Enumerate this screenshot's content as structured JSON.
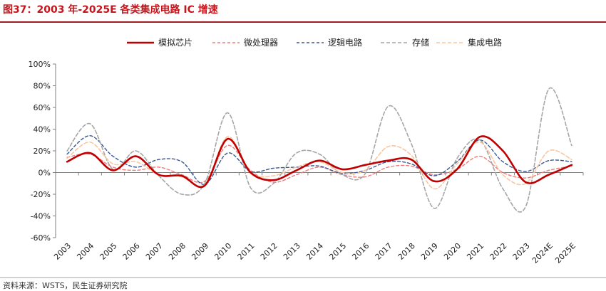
{
  "header": {
    "title": "图37：2003 年-2025E 各类集成电路 IC 增速"
  },
  "footer": {
    "source": "资料来源：WSTS，民生证券研究院"
  },
  "chart_data": {
    "type": "line",
    "title": "",
    "xlabel": "",
    "ylabel": "",
    "ylim": [
      -60,
      100
    ],
    "yticks": [
      -60,
      -40,
      -20,
      0,
      20,
      40,
      60,
      80,
      100
    ],
    "ytick_labels": [
      "-60%",
      "-40%",
      "-20%",
      "0%",
      "20%",
      "40%",
      "60%",
      "80%",
      "100%"
    ],
    "y_unit": "%",
    "grid": false,
    "legend_position": "top",
    "smooth": true,
    "categories": [
      "2003",
      "2004",
      "2005",
      "2006",
      "2007",
      "2008",
      "2009",
      "2010",
      "2011",
      "2012",
      "2013",
      "2014",
      "2015",
      "2016",
      "2017",
      "2018",
      "2019",
      "2020",
      "2021",
      "2022",
      "2023",
      "2024E",
      "2025E"
    ],
    "series": [
      {
        "name": "模拟芯片",
        "color": "#c00000",
        "dash": "solid",
        "width": 2.6,
        "values": [
          10,
          18,
          2,
          15,
          -2,
          -3,
          -12,
          31,
          0,
          -7,
          2,
          11,
          3,
          7,
          11,
          12,
          -8,
          3,
          33,
          20,
          -9,
          -2,
          7
        ]
      },
      {
        "name": "微处理器",
        "color": "#f07b7b",
        "dash": "4,3",
        "width": 1.4,
        "values": [
          14,
          17,
          5,
          2,
          5,
          -2,
          -8,
          25,
          2,
          -9,
          -2,
          5,
          -2,
          -4,
          5,
          6,
          -2,
          3,
          15,
          0,
          -5,
          2,
          6
        ]
      },
      {
        "name": "逻辑电路",
        "color": "#3b5794",
        "dash": "4,3",
        "width": 1.4,
        "values": [
          17,
          34,
          15,
          5,
          12,
          10,
          -11,
          18,
          1,
          4,
          5,
          6,
          -1,
          2,
          10,
          8,
          -3,
          10,
          30,
          10,
          1,
          11,
          10
        ]
      },
      {
        "name": "存储",
        "color": "#a6a6a6",
        "dash": "5,3",
        "width": 1.6,
        "values": [
          20,
          45,
          3,
          20,
          -3,
          -20,
          -10,
          55,
          -14,
          -10,
          18,
          17,
          -2,
          -1,
          61,
          27,
          -33,
          13,
          30,
          -15,
          -31,
          77,
          25
        ]
      },
      {
        "name": "集成电路",
        "color": "#f8c6a0",
        "dash": "5,3",
        "width": 1.6,
        "values": [
          13,
          28,
          8,
          10,
          -2,
          -4,
          -11,
          33,
          0,
          -3,
          5,
          10,
          0,
          2,
          24,
          16,
          -15,
          8,
          28,
          -2,
          -10,
          20,
          12
        ]
      }
    ]
  }
}
